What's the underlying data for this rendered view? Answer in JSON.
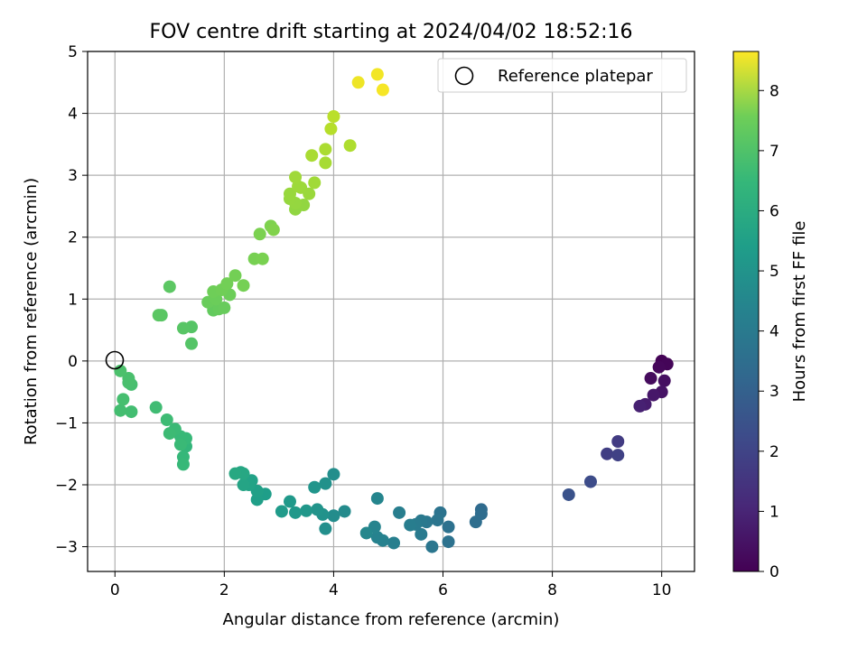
{
  "chart_data": {
    "type": "scatter",
    "title": "FOV centre drift starting at 2024/04/02 18:52:16",
    "xlabel": "Angular distance from reference (arcmin)",
    "ylabel": "Rotation from reference (arcmin)",
    "colorbar_label": "Hours from first FF file",
    "xlim": [
      -0.5,
      10.6
    ],
    "ylim": [
      -3.4,
      5.0
    ],
    "clim": [
      0,
      8.65
    ],
    "x_ticks": [
      0,
      2,
      4,
      6,
      8,
      10
    ],
    "y_ticks": [
      -3,
      -2,
      -1,
      0,
      1,
      2,
      3,
      4,
      5
    ],
    "colorbar_ticks": [
      0,
      1,
      2,
      3,
      4,
      5,
      6,
      7,
      8
    ],
    "grid": true,
    "colormap": "viridis",
    "legend": {
      "placement": "upper right",
      "entries": [
        "Reference platepar"
      ]
    },
    "reference_point": {
      "x": 0,
      "y": 0
    },
    "points": [
      {
        "x": 10.0,
        "y": 0.0,
        "t": 0.05
      },
      {
        "x": 10.1,
        "y": -0.05,
        "t": 0.1
      },
      {
        "x": 9.95,
        "y": -0.1,
        "t": 0.15
      },
      {
        "x": 9.8,
        "y": -0.28,
        "t": 0.25
      },
      {
        "x": 10.05,
        "y": -0.32,
        "t": 0.35
      },
      {
        "x": 10.0,
        "y": -0.5,
        "t": 0.45
      },
      {
        "x": 9.85,
        "y": -0.55,
        "t": 0.55
      },
      {
        "x": 9.7,
        "y": -0.7,
        "t": 0.7
      },
      {
        "x": 9.6,
        "y": -0.73,
        "t": 0.8
      },
      {
        "x": 9.2,
        "y": -1.3,
        "t": 1.5
      },
      {
        "x": 9.0,
        "y": -1.5,
        "t": 1.6
      },
      {
        "x": 9.2,
        "y": -1.52,
        "t": 1.7
      },
      {
        "x": 8.7,
        "y": -1.95,
        "t": 2.0
      },
      {
        "x": 8.3,
        "y": -2.16,
        "t": 2.2
      },
      {
        "x": 6.7,
        "y": -2.4,
        "t": 3.0
      },
      {
        "x": 6.7,
        "y": -2.47,
        "t": 3.05
      },
      {
        "x": 6.6,
        "y": -2.6,
        "t": 3.1
      },
      {
        "x": 6.1,
        "y": -2.68,
        "t": 3.2
      },
      {
        "x": 6.1,
        "y": -2.92,
        "t": 3.25
      },
      {
        "x": 5.95,
        "y": -2.45,
        "t": 3.3
      },
      {
        "x": 5.9,
        "y": -2.57,
        "t": 3.35
      },
      {
        "x": 5.8,
        "y": -3.0,
        "t": 3.4
      },
      {
        "x": 5.7,
        "y": -2.6,
        "t": 3.45
      },
      {
        "x": 5.6,
        "y": -2.58,
        "t": 3.5
      },
      {
        "x": 5.6,
        "y": -2.8,
        "t": 3.55
      },
      {
        "x": 5.5,
        "y": -2.64,
        "t": 3.6
      },
      {
        "x": 5.4,
        "y": -2.65,
        "t": 3.65
      },
      {
        "x": 5.2,
        "y": -2.45,
        "t": 3.7
      },
      {
        "x": 5.1,
        "y": -2.94,
        "t": 3.75
      },
      {
        "x": 4.9,
        "y": -2.9,
        "t": 3.8
      },
      {
        "x": 4.8,
        "y": -2.85,
        "t": 3.85
      },
      {
        "x": 4.75,
        "y": -2.68,
        "t": 3.9
      },
      {
        "x": 4.8,
        "y": -2.22,
        "t": 3.95
      },
      {
        "x": 4.6,
        "y": -2.78,
        "t": 4.0
      },
      {
        "x": 4.2,
        "y": -2.43,
        "t": 4.15
      },
      {
        "x": 4.0,
        "y": -2.5,
        "t": 4.2
      },
      {
        "x": 4.0,
        "y": -1.83,
        "t": 4.25
      },
      {
        "x": 3.85,
        "y": -2.71,
        "t": 4.3
      },
      {
        "x": 3.85,
        "y": -1.98,
        "t": 4.35
      },
      {
        "x": 3.8,
        "y": -2.48,
        "t": 4.4
      },
      {
        "x": 3.7,
        "y": -2.4,
        "t": 4.45
      },
      {
        "x": 3.65,
        "y": -2.04,
        "t": 4.5
      },
      {
        "x": 3.5,
        "y": -2.42,
        "t": 4.55
      },
      {
        "x": 3.3,
        "y": -2.45,
        "t": 4.6
      },
      {
        "x": 3.2,
        "y": -2.27,
        "t": 4.65
      },
      {
        "x": 3.05,
        "y": -2.43,
        "t": 4.7
      },
      {
        "x": 2.75,
        "y": -2.15,
        "t": 4.8
      },
      {
        "x": 2.6,
        "y": -2.24,
        "t": 4.85
      },
      {
        "x": 2.6,
        "y": -2.1,
        "t": 4.9
      },
      {
        "x": 2.5,
        "y": -1.93,
        "t": 4.95
      },
      {
        "x": 2.45,
        "y": -2.0,
        "t": 5.0
      },
      {
        "x": 2.35,
        "y": -2.0,
        "t": 5.05
      },
      {
        "x": 2.3,
        "y": -1.8,
        "t": 5.1
      },
      {
        "x": 2.35,
        "y": -1.82,
        "t": 5.15
      },
      {
        "x": 2.2,
        "y": -1.82,
        "t": 5.2
      },
      {
        "x": 1.3,
        "y": -1.38,
        "t": 5.7
      },
      {
        "x": 1.25,
        "y": -1.55,
        "t": 5.75
      },
      {
        "x": 1.25,
        "y": -1.67,
        "t": 5.8
      },
      {
        "x": 1.3,
        "y": -1.25,
        "t": 5.8
      },
      {
        "x": 1.2,
        "y": -1.22,
        "t": 5.82
      },
      {
        "x": 1.2,
        "y": -1.35,
        "t": 5.85
      },
      {
        "x": 1.1,
        "y": -1.1,
        "t": 5.87
      },
      {
        "x": 1.0,
        "y": -1.17,
        "t": 5.9
      },
      {
        "x": 0.95,
        "y": -0.95,
        "t": 5.92
      },
      {
        "x": 0.75,
        "y": -0.75,
        "t": 5.95
      },
      {
        "x": 0.3,
        "y": -0.82,
        "t": 6.0
      },
      {
        "x": 0.1,
        "y": -0.8,
        "t": 6.02
      },
      {
        "x": 0.15,
        "y": -0.62,
        "t": 6.05
      },
      {
        "x": 0.3,
        "y": -0.38,
        "t": 6.07
      },
      {
        "x": 0.25,
        "y": -0.35,
        "t": 6.1
      },
      {
        "x": 0.25,
        "y": -0.28,
        "t": 6.12
      },
      {
        "x": 0.1,
        "y": -0.16,
        "t": 6.15
      },
      {
        "x": 1.4,
        "y": 0.28,
        "t": 6.3
      },
      {
        "x": 1.4,
        "y": 0.55,
        "t": 6.32
      },
      {
        "x": 1.25,
        "y": 0.53,
        "t": 6.35
      },
      {
        "x": 0.85,
        "y": 0.74,
        "t": 6.38
      },
      {
        "x": 0.8,
        "y": 0.74,
        "t": 6.4
      },
      {
        "x": 1.0,
        "y": 1.2,
        "t": 6.42
      },
      {
        "x": 1.8,
        "y": 0.82,
        "t": 6.55
      },
      {
        "x": 1.9,
        "y": 0.84,
        "t": 6.6
      },
      {
        "x": 2.0,
        "y": 0.86,
        "t": 6.62
      },
      {
        "x": 1.7,
        "y": 0.95,
        "t": 6.65
      },
      {
        "x": 1.85,
        "y": 1.0,
        "t": 6.67
      },
      {
        "x": 2.1,
        "y": 1.07,
        "t": 6.7
      },
      {
        "x": 1.8,
        "y": 1.12,
        "t": 6.72
      },
      {
        "x": 1.95,
        "y": 1.15,
        "t": 6.75
      },
      {
        "x": 2.05,
        "y": 1.25,
        "t": 6.78
      },
      {
        "x": 2.2,
        "y": 1.38,
        "t": 6.8
      },
      {
        "x": 2.35,
        "y": 1.22,
        "t": 6.82
      },
      {
        "x": 2.55,
        "y": 1.65,
        "t": 6.85
      },
      {
        "x": 2.7,
        "y": 1.65,
        "t": 6.88
      },
      {
        "x": 2.65,
        "y": 2.05,
        "t": 6.9
      },
      {
        "x": 2.85,
        "y": 2.18,
        "t": 6.95
      },
      {
        "x": 2.9,
        "y": 2.12,
        "t": 6.98
      },
      {
        "x": 3.3,
        "y": 2.45,
        "t": 7.2
      },
      {
        "x": 3.45,
        "y": 2.52,
        "t": 7.22
      },
      {
        "x": 3.3,
        "y": 2.55,
        "t": 7.25
      },
      {
        "x": 3.2,
        "y": 2.62,
        "t": 7.27
      },
      {
        "x": 3.2,
        "y": 2.7,
        "t": 7.3
      },
      {
        "x": 3.55,
        "y": 2.7,
        "t": 7.32
      },
      {
        "x": 3.4,
        "y": 2.8,
        "t": 7.35
      },
      {
        "x": 3.35,
        "y": 2.82,
        "t": 7.37
      },
      {
        "x": 3.3,
        "y": 2.97,
        "t": 7.4
      },
      {
        "x": 3.65,
        "y": 2.88,
        "t": 7.42
      },
      {
        "x": 3.85,
        "y": 3.2,
        "t": 7.5
      },
      {
        "x": 3.6,
        "y": 3.32,
        "t": 7.52
      },
      {
        "x": 3.85,
        "y": 3.42,
        "t": 7.55
      },
      {
        "x": 4.3,
        "y": 3.48,
        "t": 7.6
      },
      {
        "x": 3.95,
        "y": 3.75,
        "t": 7.7
      },
      {
        "x": 4.0,
        "y": 3.95,
        "t": 7.75
      },
      {
        "x": 4.45,
        "y": 4.5,
        "t": 8.45
      },
      {
        "x": 4.8,
        "y": 4.63,
        "t": 8.5
      },
      {
        "x": 4.9,
        "y": 4.38,
        "t": 8.55
      }
    ]
  }
}
